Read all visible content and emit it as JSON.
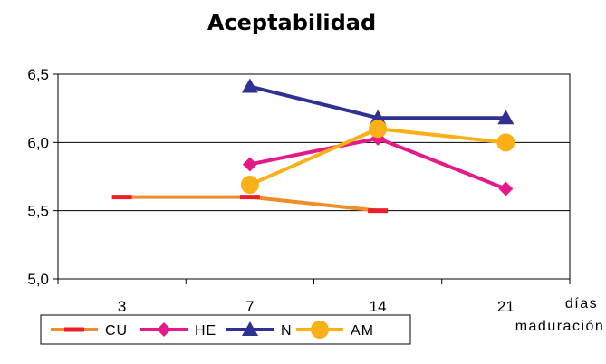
{
  "chart_data": {
    "type": "line",
    "title": "Aceptabilidad",
    "xlabel_line1": "días",
    "xlabel_line2": "maduración",
    "categories": [
      "3",
      "7",
      "14",
      "21"
    ],
    "ylim": [
      5.0,
      6.5
    ],
    "yticks": [
      "5,0",
      "5,5",
      "6,0",
      "6,5"
    ],
    "ytick_values": [
      5.0,
      5.5,
      6.0,
      6.5
    ],
    "grid": true,
    "legend_position": "bottom-left",
    "series": [
      {
        "name": "CU",
        "color": "#F28C28",
        "marker": "dash",
        "marker_color": "#E8202A",
        "values": [
          5.6,
          5.6,
          5.5,
          null
        ]
      },
      {
        "name": "HE",
        "color": "#E5198A",
        "marker": "diamond",
        "marker_color": "#E5198A",
        "values": [
          null,
          5.84,
          6.03,
          5.66
        ]
      },
      {
        "name": "N",
        "color": "#2E3192",
        "marker": "triangle",
        "marker_color": "#2E3192",
        "values": [
          null,
          6.41,
          6.18,
          6.18
        ]
      },
      {
        "name": "AM",
        "color": "#FBB017",
        "marker": "circle",
        "marker_color": "#FBB017",
        "values": [
          null,
          5.69,
          6.1,
          6.0
        ]
      }
    ]
  }
}
